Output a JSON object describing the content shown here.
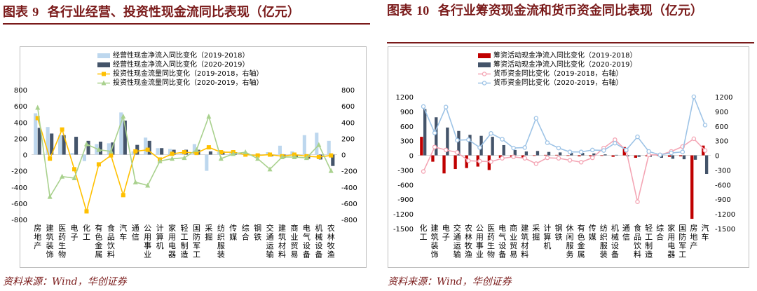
{
  "left": {
    "title_label": "图表",
    "title_num": "9",
    "title_text": "各行业经营、投资性现金流同比表现（亿元）",
    "source": "资料来源：Wind，华创证券"
  },
  "right": {
    "title_label": "图表",
    "title_num": "10",
    "title_text": "各行业筹资现金流和货币资金同比表现（亿元）",
    "source": "资料来源：Wind，华创证券"
  },
  "chart_data": [
    {
      "type": "bar",
      "categories": [
        "房地产",
        "建筑装饰",
        "医药生物",
        "电子",
        "化工",
        "有色金属",
        "食品饮料",
        "汽车",
        "通信",
        "公用事业",
        "计算机",
        "家用电器",
        "轻工制造",
        "国防军工",
        "采掘",
        "纺织服装",
        "传媒",
        "综合",
        "钢铁",
        "交通运输",
        "建筑材料",
        "商业贸易",
        "电气设备",
        "机械设备",
        "农林牧渔"
      ],
      "series": [
        {
          "name": "经营性现金净流入同比变化（2019-2018）",
          "kind": "bar",
          "axis": "left",
          "color": "#bdd7ee",
          "values": [
            510,
            340,
            240,
            20,
            -80,
            130,
            140,
            520,
            40,
            210,
            80,
            70,
            30,
            130,
            -200,
            30,
            20,
            0,
            0,
            30,
            110,
            40,
            240,
            270,
            170
          ]
        },
        {
          "name": "经营性现金净流入同比变化（2020-2019）",
          "kind": "bar",
          "axis": "left",
          "color": "#44546a",
          "values": [
            330,
            260,
            240,
            220,
            170,
            160,
            150,
            420,
            120,
            170,
            80,
            60,
            60,
            60,
            40,
            40,
            30,
            10,
            -10,
            -20,
            -40,
            -40,
            -50,
            -60,
            -140
          ]
        },
        {
          "name": "投资性现金流量同比变化（2019-2018，右轴）",
          "kind": "line",
          "axis": "right",
          "color": "#ffc000",
          "values": [
            450,
            -50,
            310,
            -180,
            -700,
            -120,
            -10,
            -500,
            40,
            60,
            -60,
            10,
            30,
            20,
            90,
            30,
            30,
            0,
            -10,
            0,
            -20,
            0,
            -20,
            -30,
            -10
          ]
        },
        {
          "name": "投资性现金流量同比变化（2020-2019，右轴）",
          "kind": "line",
          "axis": "right",
          "color": "#a9d18e",
          "values": [
            580,
            -520,
            -270,
            -290,
            130,
            60,
            40,
            470,
            -340,
            -380,
            -80,
            -50,
            -40,
            60,
            470,
            -50,
            10,
            30,
            -50,
            -180,
            -30,
            -30,
            -40,
            120,
            -200
          ]
        }
      ],
      "y_left": {
        "min": -800,
        "max": 800,
        "ticks": [
          "800",
          "600",
          "400",
          "200",
          "0",
          "-200",
          "-400",
          "-600",
          "-800"
        ]
      },
      "y_right": {
        "min": -800,
        "max": 800,
        "ticks": [
          "800",
          "600",
          "400",
          "200",
          "0",
          "-200",
          "-400",
          "-600",
          "-800"
        ]
      },
      "legend": "top-center",
      "grid": false
    },
    {
      "type": "bar",
      "categories": [
        "化工",
        "建筑装饰",
        "电子",
        "交通运输",
        "农林牧渔",
        "公用事业",
        "医药生物",
        "电气设备",
        "商业贸易",
        "建筑材料",
        "采掘",
        "计算机",
        "钢铁",
        "休闲服务",
        "有色金属",
        "传媒",
        "纺织服装",
        "机械设备",
        "通信",
        "食品饮料",
        "轻工制造",
        "综合",
        "家用电器",
        "国防军工",
        "房地产",
        "汽车"
      ],
      "series": [
        {
          "name": "筹资活动现金净流入同比变化（2019-2018）",
          "kind": "bar",
          "axis": "left",
          "color": "#c00000",
          "values": [
            380,
            -130,
            -370,
            -280,
            -260,
            -230,
            -300,
            -50,
            -40,
            -60,
            -10,
            10,
            10,
            -10,
            -20,
            -20,
            -10,
            -30,
            170,
            -50,
            -20,
            -10,
            -30,
            -20,
            -1300,
            200
          ]
        },
        {
          "name": "筹资活动现金净流入同比变化（2020-2019）",
          "kind": "bar",
          "axis": "left",
          "color": "#44546a",
          "values": [
            950,
            780,
            570,
            500,
            420,
            400,
            380,
            210,
            110,
            80,
            90,
            70,
            60,
            50,
            50,
            40,
            20,
            10,
            -20,
            -30,
            -30,
            -50,
            -70,
            -80,
            -90,
            -380
          ]
        },
        {
          "name": "货币资金同比变化（2019-2018，右轴）",
          "kind": "line",
          "axis": "right",
          "color": "#f4a6b5",
          "values": [
            -330,
            170,
            110,
            60,
            -110,
            -120,
            -130,
            -60,
            -30,
            -60,
            -170,
            -50,
            -60,
            -100,
            -140,
            -50,
            150,
            320,
            100,
            -950,
            10,
            10,
            80,
            180,
            340,
            100
          ]
        },
        {
          "name": "货币资金同比变化（2020-2019，右轴）",
          "kind": "line",
          "axis": "right",
          "color": "#9dc3e6",
          "values": [
            1000,
            460,
            990,
            310,
            320,
            160,
            450,
            330,
            150,
            160,
            760,
            260,
            150,
            70,
            70,
            110,
            100,
            250,
            110,
            380,
            80,
            10,
            50,
            70,
            1200,
            620
          ]
        }
      ],
      "y_left": {
        "min": -1500,
        "max": 1200,
        "ticks": [
          "1200",
          "900",
          "600",
          "300",
          "0",
          "-300",
          "-600",
          "-900",
          "-1200",
          "-1500"
        ]
      },
      "y_right": {
        "min": -1500,
        "max": 1200,
        "ticks": [
          "1200",
          "900",
          "600",
          "300",
          "0",
          "-300",
          "-600",
          "-900",
          "-1200",
          "-1500"
        ]
      },
      "legend": "top-left",
      "grid": false
    }
  ]
}
